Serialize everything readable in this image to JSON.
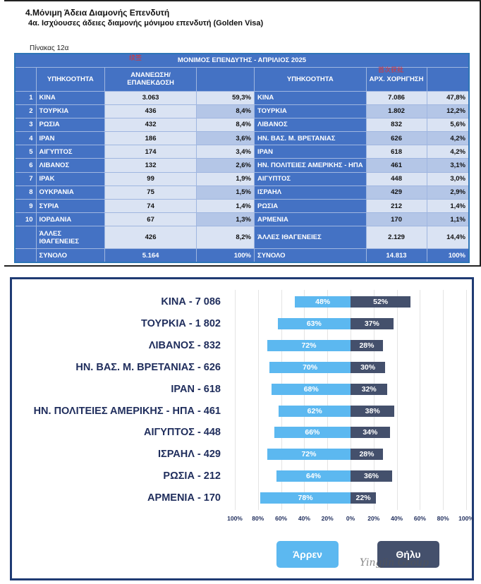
{
  "document": {
    "heading": "4.Μόνιμη Άδεια Διαμονής  Επενδυτή",
    "subheading": "4α. Ισχύουσες άδειες διαμονής μόνιμου επενδυτή (Golden Visa)",
    "table_caption": "Πίνακας 12α"
  },
  "table": {
    "title": "ΜΟΝΙΜΟΣ ΕΠΕΝΔΥΤΗΣ - ΑΠΡΙΛΙΟΣ 2025",
    "headers": [
      "ΥΠΗΚΟΟΤΗΤΑ",
      "ΑΝΑΝΕΩΣΗ/ ΕΠΑΝΕΚΔΟΣΗ",
      "",
      "ΥΠΗΚΟΟΤΗΤΑ",
      "ΑΡΧ. ΧΟΡΗΓΗΣΗ",
      ""
    ],
    "overlay_marks": [
      "续签",
      "首次获批"
    ],
    "rows": [
      [
        "1",
        "ΚΙΝΑ",
        "3.063",
        "59,3%",
        "ΚΙΝΑ",
        "7.086",
        "47,8%"
      ],
      [
        "2",
        "ΤΟΥΡΚΙΑ",
        "436",
        "8,4%",
        "ΤΟΥΡΚΙΑ",
        "1.802",
        "12,2%"
      ],
      [
        "3",
        "ΡΩΣΙΑ",
        "432",
        "8,4%",
        "ΛΙΒΑΝΟΣ",
        "832",
        "5,6%"
      ],
      [
        "4",
        "ΙΡΑΝ",
        "186",
        "3,6%",
        "ΗΝ. ΒΑΣ. Μ. ΒΡΕΤΑΝΙΑΣ",
        "626",
        "4,2%"
      ],
      [
        "5",
        "ΑΙΓΥΠΤΟΣ",
        "174",
        "3,4%",
        "ΙΡΑΝ",
        "618",
        "4,2%"
      ],
      [
        "6",
        "ΛΙΒΑΝΟΣ",
        "132",
        "2,6%",
        "ΗΝ. ΠΟΛΙΤΕΙΕΣ ΑΜΕΡΙΚΗΣ - ΗΠΑ",
        "461",
        "3,1%"
      ],
      [
        "7",
        "ΙΡΑΚ",
        "99",
        "1,9%",
        "ΑΙΓΥΠΤΟΣ",
        "448",
        "3,0%"
      ],
      [
        "8",
        "ΟΥΚΡΑΝΙΑ",
        "75",
        "1,5%",
        "ΙΣΡΑΗΛ",
        "429",
        "2,9%"
      ],
      [
        "9",
        "ΣΥΡΙΑ",
        "74",
        "1,4%",
        "ΡΩΣΙΑ",
        "212",
        "1,4%"
      ],
      [
        "10",
        "ΙΟΡΔΑΝΙΑ",
        "67",
        "1,3%",
        "ΑΡΜΕΝΙΑ",
        "170",
        "1,1%"
      ],
      [
        "",
        "ΆΛΛΕΣ ΙΘΑΓΕΝΕΙΕΣ",
        "426",
        "8,2%",
        "ΆΛΛΕΣ ΙΘΑΓΕΝΕΙΕΣ",
        "2.129",
        "14,4%"
      ],
      [
        "",
        "ΣΥΝΟΛΟ",
        "5.164",
        "100%",
        "ΣΥΝΟΛΟ",
        "14.813",
        "100%"
      ]
    ]
  },
  "chart_data": {
    "type": "bar",
    "orientation": "horizontal",
    "stacked": "diverging",
    "categories": [
      "ΚΙΝΑ - 7 086",
      "ΤΟΥΡΚΙΑ - 1 802",
      "ΛΙΒΑΝΟΣ - 832",
      "ΗΝ. ΒΑΣ. Μ. ΒΡΕΤΑΝΙΑΣ - 626",
      "ΙΡΑΝ - 618",
      "ΗΝ. ΠΟΛΙΤΕΙΕΣ ΑΜΕΡΙΚΗΣ - ΗΠΑ - 461",
      "ΑΙΓΥΠΤΟΣ - 448",
      "ΙΣΡΑΗΛ - 429",
      "ΡΩΣΙΑ - 212",
      "ΑΡΜΕΝΙΑ - 170"
    ],
    "series": [
      {
        "name": "Άρρεν",
        "color": "#5cb8f0",
        "values": [
          48,
          63,
          72,
          70,
          68,
          62,
          66,
          72,
          64,
          78
        ]
      },
      {
        "name": "Θήλυ",
        "color": "#44506c",
        "values": [
          52,
          37,
          28,
          30,
          32,
          38,
          34,
          28,
          36,
          22
        ]
      }
    ],
    "xticks": [
      "100%",
      "80%",
      "60%",
      "40%",
      "20%",
      "0%",
      "20%",
      "40%",
      "60%",
      "80%",
      "100%"
    ],
    "xlim": [
      -100,
      100
    ],
    "grid": true,
    "legend": "bottom"
  },
  "watermark": "Yingjin Group"
}
